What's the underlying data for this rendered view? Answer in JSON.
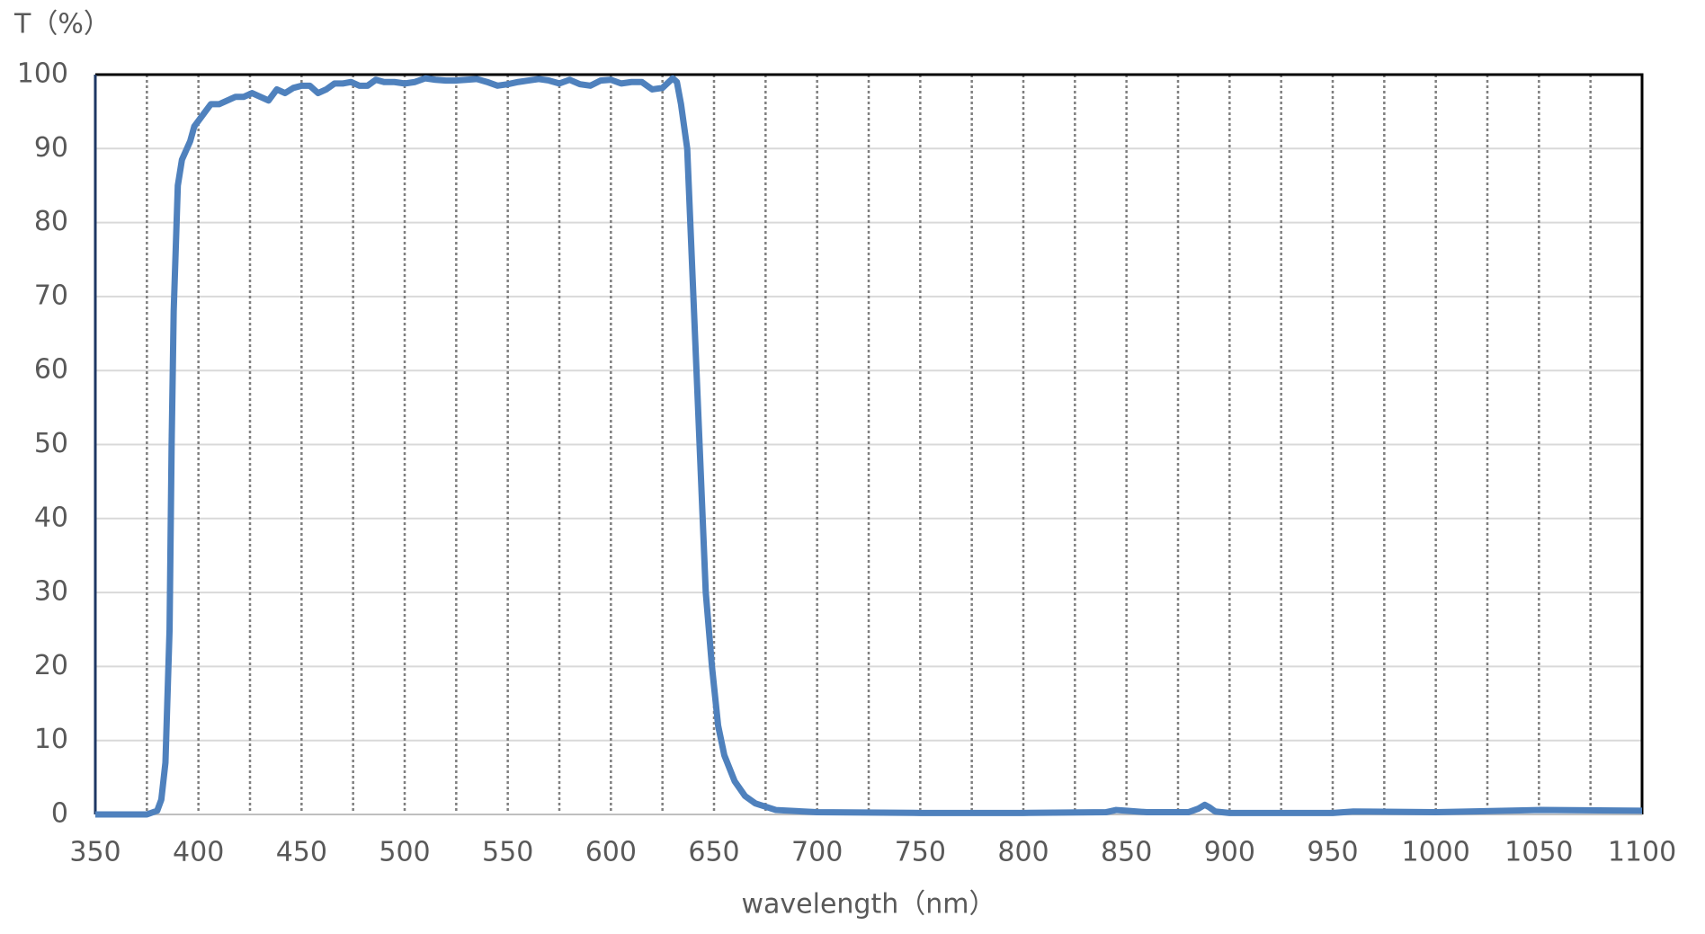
{
  "chart_data": {
    "type": "line",
    "ylabel": "T（%）",
    "xlabel": "wavelength（nm）",
    "xlim": [
      350,
      1100
    ],
    "xticks": [
      350,
      400,
      450,
      500,
      550,
      600,
      650,
      700,
      750,
      800,
      850,
      900,
      950,
      1000,
      1050,
      1100
    ],
    "xminor_grid": [
      375,
      425,
      475,
      525,
      575,
      625,
      675,
      725,
      775,
      825,
      875,
      925,
      975,
      1025,
      1075
    ],
    "ylim": [
      0,
      100
    ],
    "yticks": [
      0,
      10,
      20,
      30,
      40,
      50,
      60,
      70,
      80,
      90,
      100
    ],
    "grid": true,
    "series": [
      {
        "name": "T",
        "color": "#4f81bd",
        "x": [
          350,
          375,
          380,
          382,
          384,
          386,
          387,
          388,
          390,
          392,
          396,
          398,
          402,
          406,
          410,
          414,
          418,
          422,
          426,
          430,
          434,
          438,
          442,
          446,
          450,
          454,
          458,
          462,
          466,
          470,
          474,
          478,
          482,
          486,
          490,
          495,
          500,
          505,
          510,
          515,
          520,
          525,
          530,
          535,
          540,
          545,
          550,
          555,
          560,
          565,
          570,
          575,
          580,
          585,
          590,
          595,
          600,
          605,
          610,
          615,
          620,
          625,
          630,
          632,
          634,
          637,
          640,
          643,
          646,
          649,
          652,
          655,
          660,
          665,
          670,
          680,
          700,
          750,
          800,
          840,
          845,
          850,
          860,
          880,
          885,
          888,
          890,
          893,
          900,
          950,
          960,
          1000,
          1050,
          1100
        ],
        "values": [
          0,
          0,
          0.5,
          2,
          7,
          25,
          50,
          68,
          85,
          88.5,
          91,
          93,
          94.5,
          96,
          96,
          96.5,
          97,
          97,
          97.5,
          97,
          96.5,
          98,
          97.5,
          98.2,
          98.5,
          98.5,
          97.5,
          98,
          98.8,
          98.8,
          99,
          98.5,
          98.5,
          99.3,
          99,
          99,
          98.8,
          99,
          99.5,
          99.3,
          99.2,
          99.2,
          99.3,
          99.4,
          99,
          98.5,
          98.7,
          99,
          99.2,
          99.4,
          99.2,
          98.8,
          99.3,
          98.7,
          98.5,
          99.2,
          99.3,
          98.8,
          99,
          99,
          98,
          98.2,
          99.5,
          99,
          96,
          90,
          70,
          50,
          30,
          20,
          12,
          8,
          4.5,
          2.5,
          1.5,
          0.6,
          0.3,
          0.2,
          0.2,
          0.3,
          0.6,
          0.5,
          0.3,
          0.3,
          0.8,
          1.3,
          1,
          0.4,
          0.2,
          0.2,
          0.4,
          0.3,
          0.6,
          0.5
        ]
      }
    ]
  }
}
